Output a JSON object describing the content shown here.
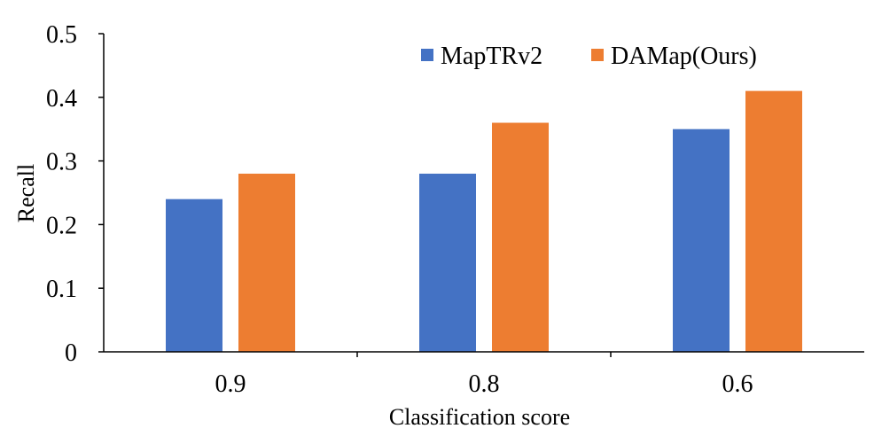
{
  "chart_data": {
    "type": "bar",
    "title": "",
    "xlabel": "Classification score",
    "ylabel": "Recall",
    "categories": [
      "0.9",
      "0.8",
      "0.6"
    ],
    "series": [
      {
        "name": "MapTRv2",
        "color": "#4472C4",
        "values": [
          0.24,
          0.28,
          0.35
        ]
      },
      {
        "name": "DAMap(Ours)",
        "color": "#ED7D31",
        "values": [
          0.28,
          0.36,
          0.41
        ]
      }
    ],
    "ylim": [
      0,
      0.5
    ],
    "yticks": [
      "0",
      "0.1",
      "0.2",
      "0.3",
      "0.4",
      "0.5"
    ],
    "grid": false,
    "legend_position": "top-right"
  }
}
